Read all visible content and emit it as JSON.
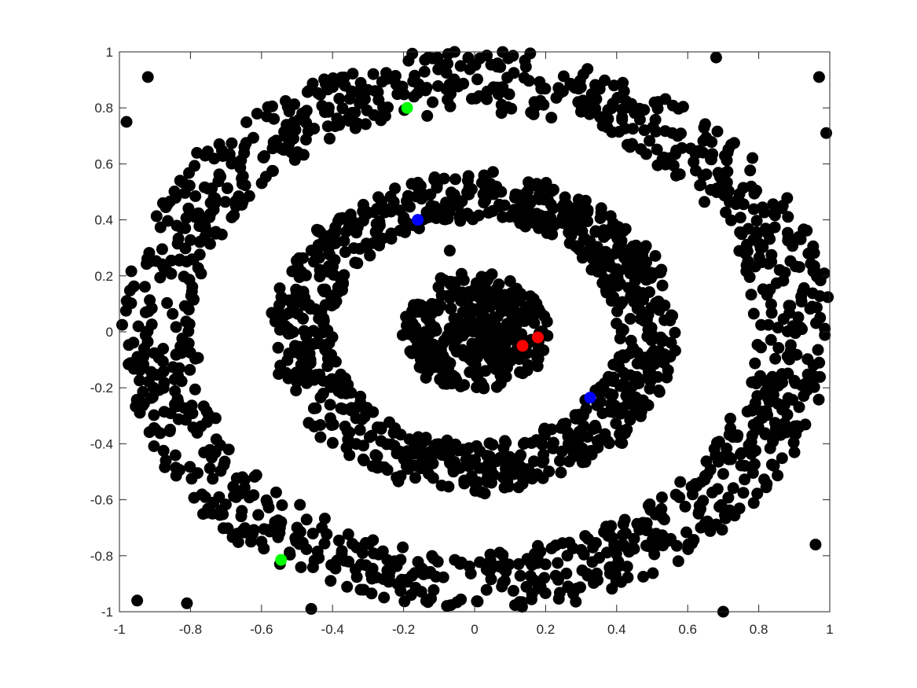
{
  "chart_data": {
    "type": "scatter",
    "title": "",
    "xlabel": "",
    "ylabel": "",
    "xlim": [
      -1,
      1
    ],
    "ylim": [
      -1,
      1
    ],
    "grid": false,
    "legend": "none",
    "box": true,
    "x_ticks": [
      -1,
      -0.8,
      -0.6,
      -0.4,
      -0.2,
      0,
      0.2,
      0.4,
      0.6,
      0.8,
      1
    ],
    "y_ticks": [
      -1,
      -0.8,
      -0.6,
      -0.4,
      -0.2,
      0,
      0.2,
      0.4,
      0.6,
      0.8,
      1
    ],
    "x_tick_labels": [
      "-1",
      "-0.8",
      "-0.6",
      "-0.4",
      "-0.2",
      "0",
      "0.2",
      "0.4",
      "0.6",
      "0.8",
      "1"
    ],
    "y_tick_labels": [
      "-1",
      "-0.8",
      "-0.6",
      "-0.4",
      "-0.2",
      "0",
      "0.2",
      "0.4",
      "0.6",
      "0.8",
      "1"
    ],
    "point_color": "#000000",
    "point_clusters": [
      {
        "shape": "disk",
        "center": [
          0,
          0
        ],
        "r_min": 0.0,
        "r_max": 0.21,
        "count": 330
      },
      {
        "shape": "ring",
        "center": [
          0,
          0
        ],
        "r_min": 0.4,
        "r_max": 0.57,
        "count": 850
      },
      {
        "shape": "ring",
        "center": [
          0,
          0
        ],
        "r_min": 0.79,
        "r_max": 1.0,
        "count": 1150
      }
    ],
    "outliers": [
      [
        -0.98,
        0.75
      ],
      [
        -0.95,
        -0.96
      ],
      [
        -0.92,
        0.91
      ],
      [
        -0.81,
        -0.97
      ],
      [
        0.97,
        0.91
      ],
      [
        0.99,
        0.71
      ],
      [
        0.96,
        -0.76
      ],
      [
        0.7,
        -1.0
      ],
      [
        -0.46,
        -0.99
      ],
      [
        0.68,
        0.98
      ],
      [
        -0.07,
        0.29
      ],
      [
        0.44,
        -0.3
      ],
      [
        -0.06,
        -0.49
      ]
    ],
    "series": [
      {
        "color": "#00ff00",
        "x": [
          -0.19,
          -0.545
        ],
        "y": [
          0.8,
          -0.815
        ]
      },
      {
        "color": "#0000ff",
        "x": [
          -0.16,
          0.325
        ],
        "y": [
          0.4,
          -0.235
        ]
      },
      {
        "color": "#ff0000",
        "x": [
          0.135,
          0.178
        ],
        "y": [
          -0.05,
          -0.02
        ]
      }
    ]
  }
}
